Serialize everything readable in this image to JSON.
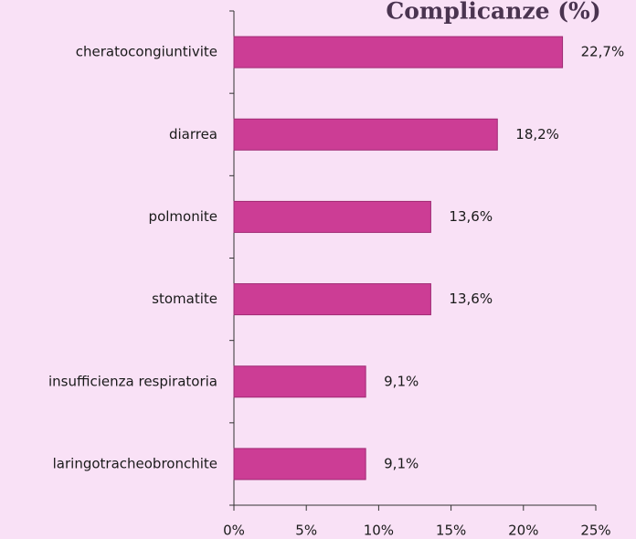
{
  "chart_data": {
    "type": "bar",
    "orientation": "horizontal",
    "title": "Complicanze (%)",
    "categories": [
      "cheratocongiuntivite",
      "diarrea",
      "polmonite",
      "stomatite",
      "insufficienza respiratoria",
      "laringotracheobronchite"
    ],
    "values": [
      22.7,
      18.2,
      13.6,
      13.6,
      9.1,
      9.1
    ],
    "value_labels": [
      "22,7%",
      "18,2%",
      "13,6%",
      "13,6%",
      "9,1%",
      "9,1%"
    ],
    "color": "#cc3d95",
    "xlim": [
      0,
      25
    ],
    "xticks": [
      {
        "value": 0,
        "label": "0%"
      },
      {
        "value": 5,
        "label": "5%"
      },
      {
        "value": 10,
        "label": "10%"
      },
      {
        "value": 15,
        "label": "15%"
      },
      {
        "value": 20,
        "label": "20%"
      },
      {
        "value": 25,
        "label": "25%"
      }
    ],
    "grid": false
  }
}
